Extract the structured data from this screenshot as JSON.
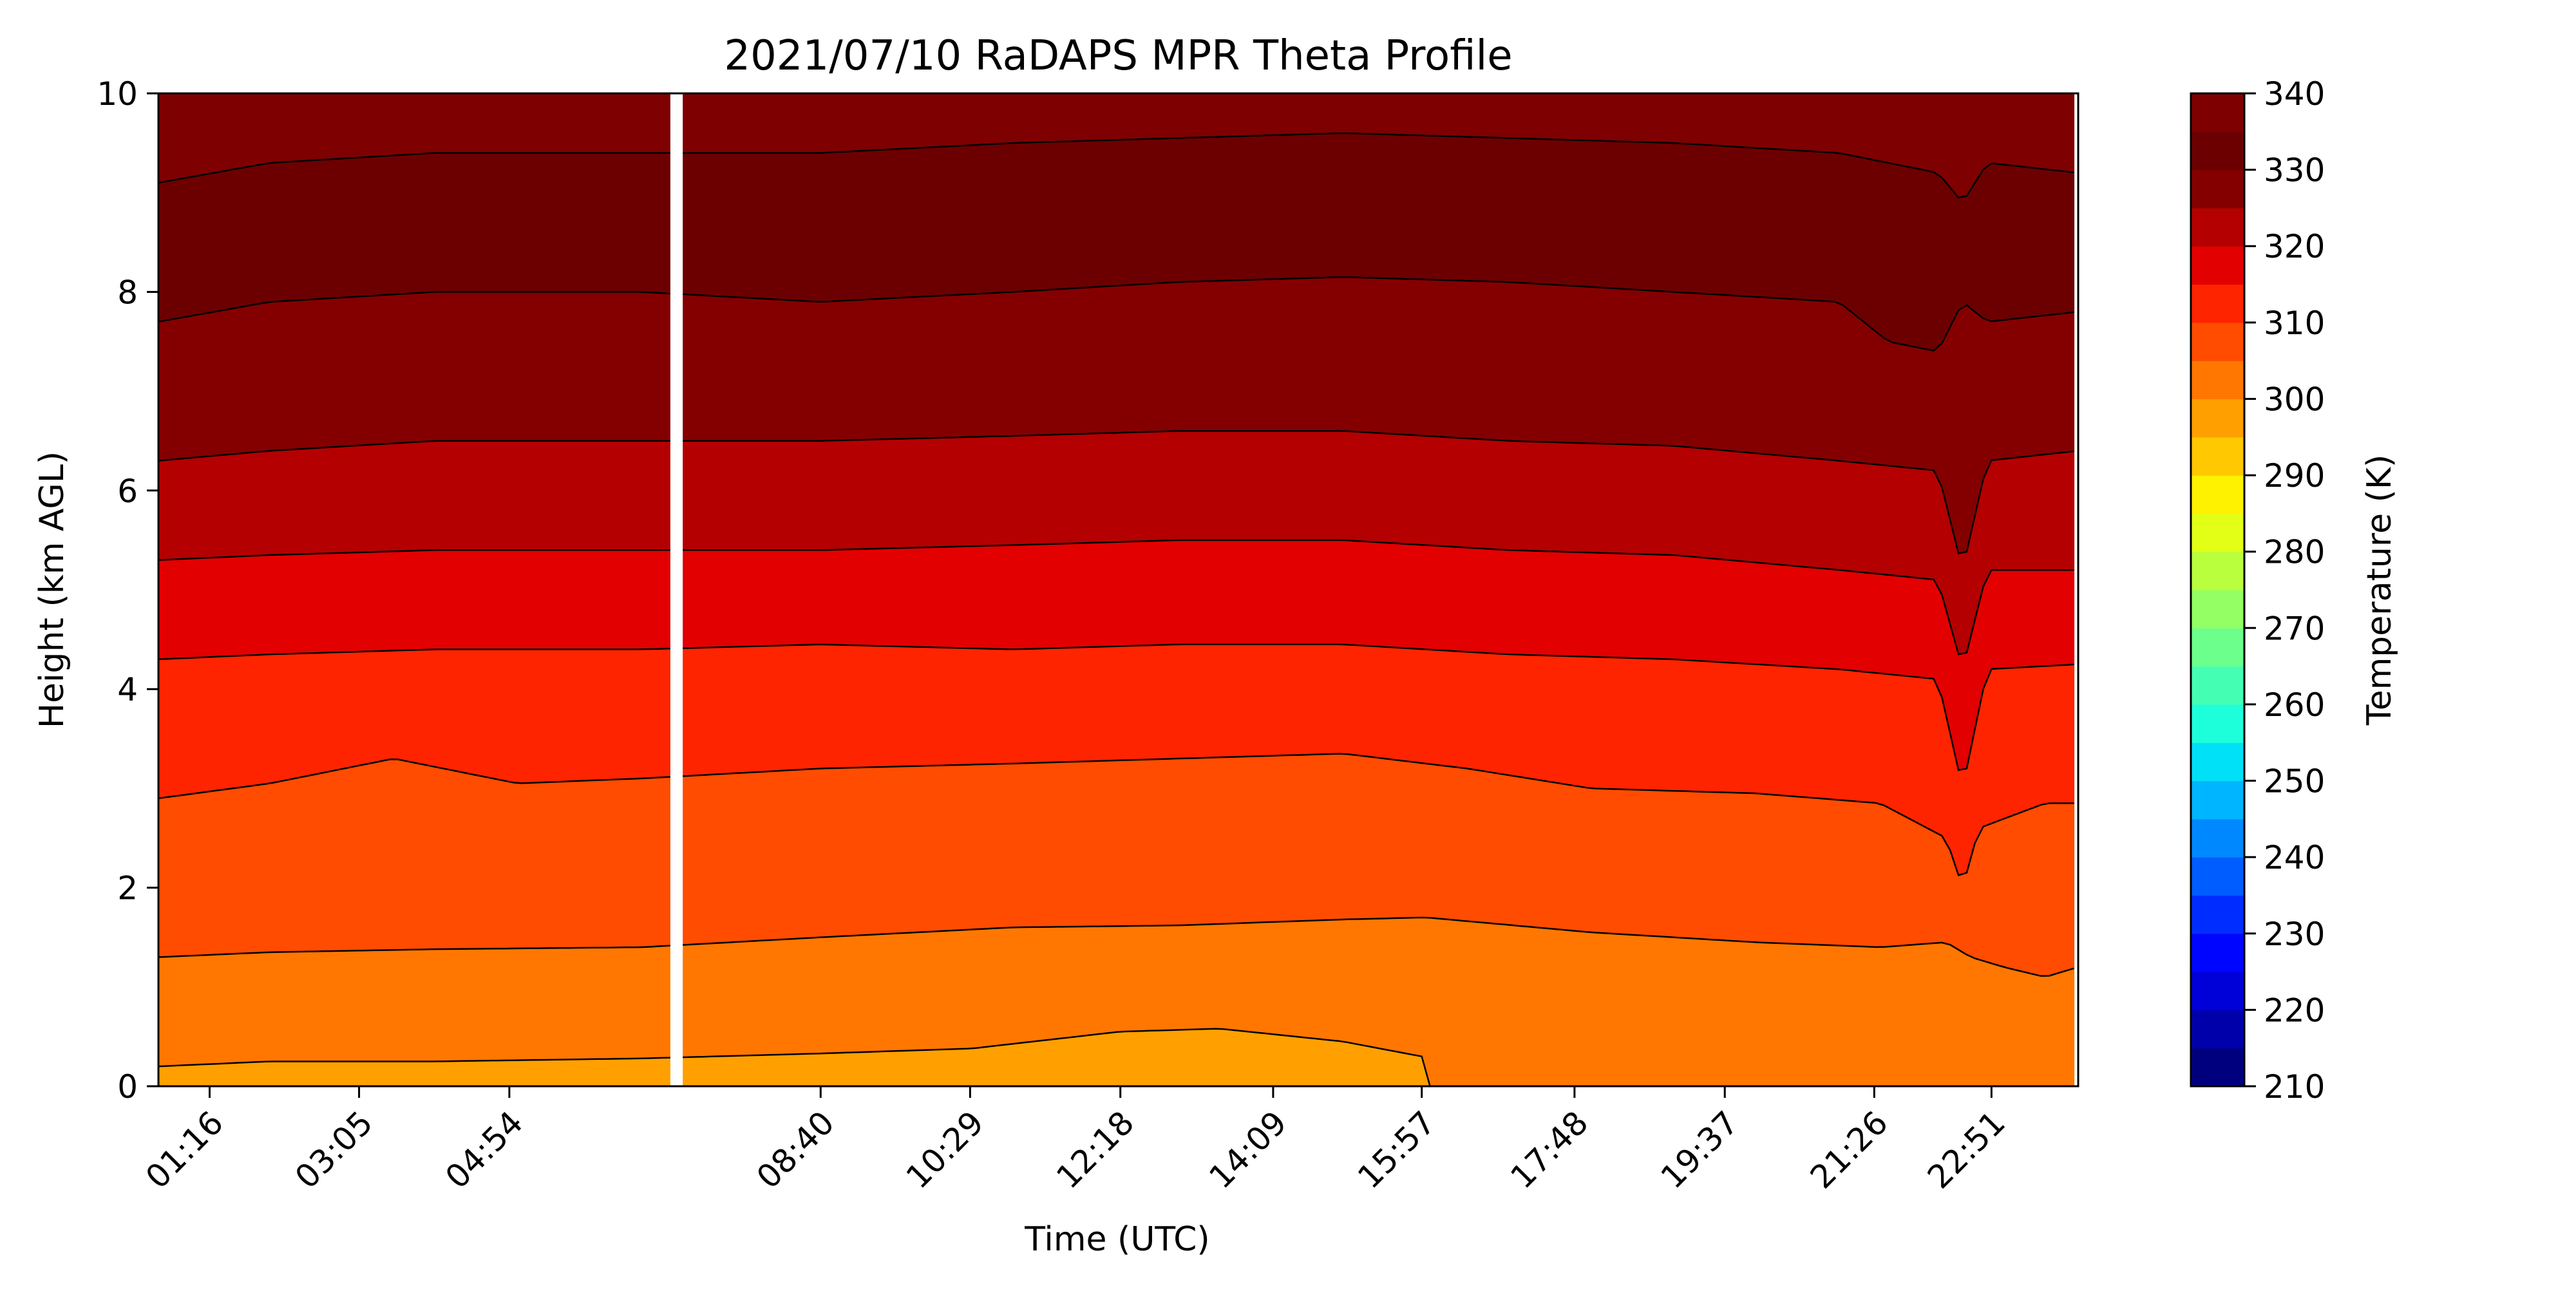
{
  "chart_data": {
    "type": "heatmap",
    "title": "2021/07/10 RaDAPS MPR Theta Profile",
    "xlabel": "Time (UTC)",
    "ylabel": "Height (km AGL)",
    "colorbar_label": "Temperature (K)",
    "x_ticks": [
      "01:16",
      "03:05",
      "04:54",
      "08:40",
      "10:29",
      "12:18",
      "14:09",
      "15:57",
      "17:48",
      "19:37",
      "21:26",
      "22:51"
    ],
    "x_tick_hours": [
      1.27,
      3.08,
      4.9,
      8.67,
      10.48,
      12.3,
      14.15,
      15.95,
      17.8,
      19.62,
      21.43,
      22.85
    ],
    "xlim_hours": [
      0.65,
      23.9
    ],
    "ylim": [
      0,
      10
    ],
    "y_ticks": [
      0,
      2,
      4,
      6,
      8,
      10
    ],
    "data_gap_hours": [
      6.85,
      7.0
    ],
    "colorbar": {
      "min": 210,
      "max": 340,
      "step": 5,
      "ticks": [
        210,
        220,
        230,
        240,
        250,
        260,
        270,
        280,
        290,
        300,
        310,
        320,
        330,
        340
      ],
      "colors": [
        "#00007f",
        "#0000ab",
        "#0000d8",
        "#0005ff",
        "#002dff",
        "#005dff",
        "#0089ff",
        "#00b5ff",
        "#00e1f7",
        "#1dffda",
        "#44ffb3",
        "#6cff8b",
        "#93ff64",
        "#baff3d",
        "#e2ff15",
        "#fff200",
        "#ffc800",
        "#ffa000",
        "#ff7700",
        "#ff4c00",
        "#ff2400",
        "#e20000",
        "#b40000",
        "#840000",
        "#6c0000",
        "#7f0000"
      ]
    },
    "contour_levels_K": [
      300,
      305,
      310,
      315,
      320,
      325,
      330,
      335
    ],
    "series": [
      {
        "level_K": 300,
        "points": [
          [
            0.65,
            0.2
          ],
          [
            2,
            0.25
          ],
          [
            4,
            0.25
          ],
          [
            6.5,
            0.28
          ],
          [
            8.67,
            0.33
          ],
          [
            10.5,
            0.38
          ],
          [
            12.3,
            0.55
          ],
          [
            13.5,
            0.58
          ],
          [
            15,
            0.45
          ],
          [
            15.95,
            0.3
          ],
          [
            16.05,
            0.0
          ]
        ]
      },
      {
        "level_K": 305,
        "points": [
          [
            0.65,
            1.3
          ],
          [
            2,
            1.35
          ],
          [
            4,
            1.38
          ],
          [
            6.5,
            1.4
          ],
          [
            8.67,
            1.5
          ],
          [
            11,
            1.6
          ],
          [
            13,
            1.62
          ],
          [
            15,
            1.68
          ],
          [
            16,
            1.7
          ],
          [
            18,
            1.55
          ],
          [
            20,
            1.45
          ],
          [
            21.5,
            1.4
          ],
          [
            22.3,
            1.45
          ],
          [
            22.6,
            1.3
          ],
          [
            23,
            1.2
          ],
          [
            23.5,
            1.1
          ],
          [
            23.9,
            1.2
          ]
        ]
      },
      {
        "level_K": 310,
        "points": [
          [
            0.65,
            2.9
          ],
          [
            2,
            3.05
          ],
          [
            3.5,
            3.3
          ],
          [
            5,
            3.05
          ],
          [
            6.5,
            3.1
          ],
          [
            8.67,
            3.2
          ],
          [
            11,
            3.25
          ],
          [
            13,
            3.3
          ],
          [
            15,
            3.35
          ],
          [
            16.5,
            3.2
          ],
          [
            18,
            3.0
          ],
          [
            20,
            2.95
          ],
          [
            21.5,
            2.85
          ],
          [
            22.3,
            2.5
          ],
          [
            22.5,
            2.0
          ],
          [
            22.7,
            2.6
          ],
          [
            23.5,
            2.85
          ],
          [
            23.9,
            2.85
          ]
        ]
      },
      {
        "level_K": 315,
        "points": [
          [
            0.65,
            4.3
          ],
          [
            2,
            4.35
          ],
          [
            4,
            4.4
          ],
          [
            6.5,
            4.4
          ],
          [
            8.67,
            4.45
          ],
          [
            11,
            4.4
          ],
          [
            13,
            4.45
          ],
          [
            15,
            4.45
          ],
          [
            17,
            4.35
          ],
          [
            19,
            4.3
          ],
          [
            21,
            4.2
          ],
          [
            22.2,
            4.1
          ],
          [
            22.5,
            3.0
          ],
          [
            22.8,
            4.2
          ],
          [
            23.9,
            4.25
          ]
        ]
      },
      {
        "level_K": 320,
        "points": [
          [
            0.65,
            5.3
          ],
          [
            2,
            5.35
          ],
          [
            4,
            5.4
          ],
          [
            6.5,
            5.4
          ],
          [
            8.67,
            5.4
          ],
          [
            11,
            5.45
          ],
          [
            13,
            5.5
          ],
          [
            15,
            5.5
          ],
          [
            17,
            5.4
          ],
          [
            19,
            5.35
          ],
          [
            21,
            5.2
          ],
          [
            22.2,
            5.1
          ],
          [
            22.5,
            4.2
          ],
          [
            22.8,
            5.2
          ],
          [
            23.9,
            5.2
          ]
        ]
      },
      {
        "level_K": 325,
        "points": [
          [
            0.65,
            6.3
          ],
          [
            2,
            6.4
          ],
          [
            4,
            6.5
          ],
          [
            6.5,
            6.5
          ],
          [
            8.67,
            6.5
          ],
          [
            11,
            6.55
          ],
          [
            13,
            6.6
          ],
          [
            15,
            6.6
          ],
          [
            17,
            6.5
          ],
          [
            19,
            6.45
          ],
          [
            21,
            6.3
          ],
          [
            22.2,
            6.2
          ],
          [
            22.5,
            5.2
          ],
          [
            22.8,
            6.3
          ],
          [
            23.9,
            6.4
          ]
        ]
      },
      {
        "level_K": 330,
        "points": [
          [
            0.65,
            7.7
          ],
          [
            2,
            7.9
          ],
          [
            4,
            8.0
          ],
          [
            6.5,
            8.0
          ],
          [
            8.67,
            7.9
          ],
          [
            11,
            8.0
          ],
          [
            13,
            8.1
          ],
          [
            15,
            8.15
          ],
          [
            17,
            8.1
          ],
          [
            19,
            8.0
          ],
          [
            21,
            7.9
          ],
          [
            21.6,
            7.5
          ],
          [
            22.2,
            7.4
          ],
          [
            22.5,
            7.9
          ],
          [
            22.8,
            7.7
          ],
          [
            23.9,
            7.8
          ]
        ]
      },
      {
        "level_K": 335,
        "points": [
          [
            0.65,
            9.1
          ],
          [
            2,
            9.3
          ],
          [
            4,
            9.4
          ],
          [
            6.5,
            9.4
          ],
          [
            8.67,
            9.4
          ],
          [
            11,
            9.5
          ],
          [
            13,
            9.55
          ],
          [
            15,
            9.6
          ],
          [
            17,
            9.55
          ],
          [
            19,
            9.5
          ],
          [
            21,
            9.4
          ],
          [
            22.2,
            9.2
          ],
          [
            22.5,
            8.9
          ],
          [
            22.8,
            9.3
          ],
          [
            23.9,
            9.2
          ]
        ]
      }
    ]
  }
}
